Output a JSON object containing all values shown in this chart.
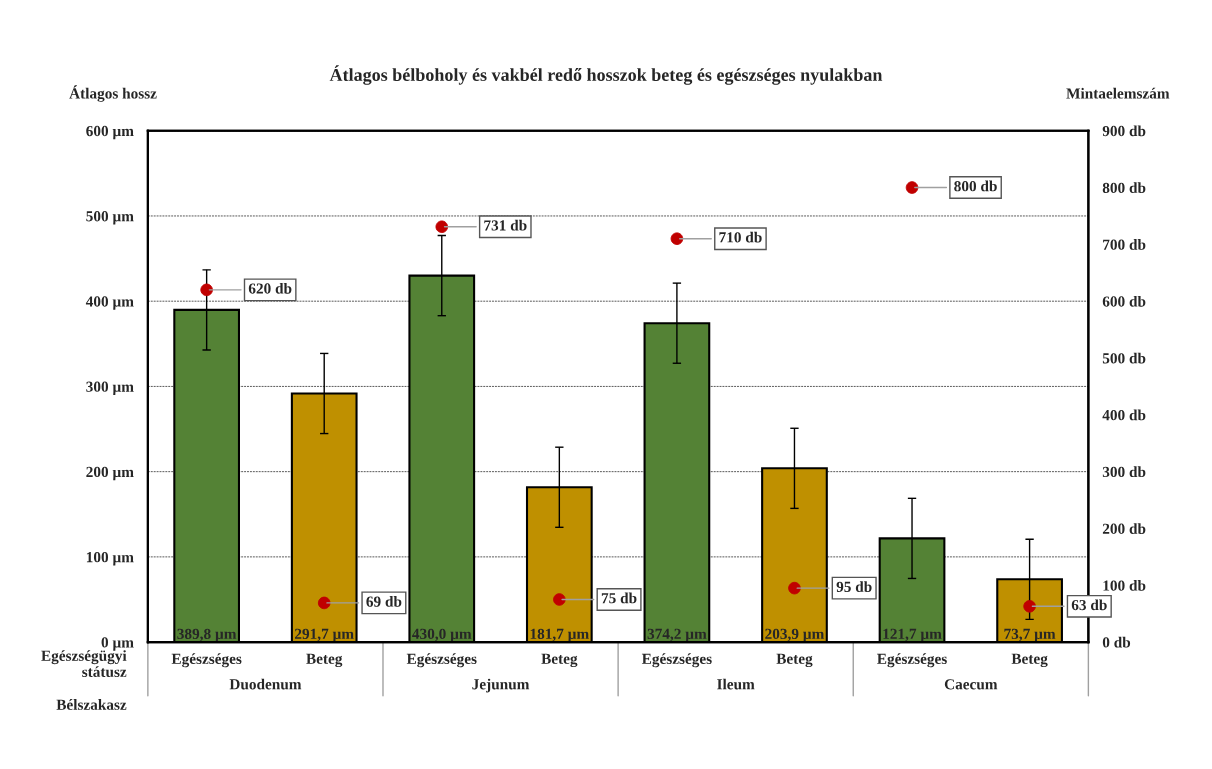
{
  "chart_data": {
    "type": "bar",
    "title": "Átlagos bélboholy és vakbél redő hosszok beteg és egészséges nyulakban",
    "ylabel": "Átlagos hossz",
    "y2label": "Mintaelemszám",
    "categories": [
      "Egészséges",
      "Beteg",
      "Egészséges",
      "Beteg",
      "Egészséges",
      "Beteg",
      "Egészséges",
      "Beteg"
    ],
    "series": [
      {
        "colors": [
          "#548235",
          "#bf9000",
          "#548235",
          "#bf9000",
          "#548235",
          "#bf9000",
          "#548235",
          "#bf9000"
        ],
        "values": [
          389.8,
          291.7,
          430.0,
          181.7,
          374.2,
          203.9,
          121.7,
          73.7
        ],
        "errors": [
          47,
          47,
          47,
          47,
          47,
          47,
          47,
          47
        ],
        "value_labels": [
          "389,8 µm",
          "291,7 µm",
          "430,0 µm",
          "181,7 µm",
          "374,2 µm",
          "203,9 µm",
          "121,7 µm",
          "73,7 µm"
        ]
      },
      {
        "type": "scatter",
        "axis": "y2",
        "color": "#c00000",
        "marker": "circle",
        "values": [
          620,
          69,
          731,
          75,
          710,
          95,
          800,
          63
        ],
        "value_labels": [
          "620 db",
          "69 db",
          "731 db",
          "75 db",
          "710 db",
          "95 db",
          "800 db",
          "63 db"
        ]
      }
    ],
    "ylim": [
      0,
      600
    ],
    "yticks": [
      {
        "value": 0,
        "label": "0 µm"
      },
      {
        "value": 100,
        "label": "100 µm"
      },
      {
        "value": 200,
        "label": "200 µm"
      },
      {
        "value": 300,
        "label": "300 µm"
      },
      {
        "value": 400,
        "label": "400 µm"
      },
      {
        "value": 500,
        "label": "500 µm"
      },
      {
        "value": 600,
        "label": "600 µm"
      }
    ],
    "y2lim": [
      0,
      900
    ],
    "y2ticks": [
      {
        "value": 0,
        "label": "0 db"
      },
      {
        "value": 100,
        "label": "100 db"
      },
      {
        "value": 200,
        "label": "200 db"
      },
      {
        "value": 300,
        "label": "300 db"
      },
      {
        "value": 400,
        "label": "400 db"
      },
      {
        "value": 500,
        "label": "500 db"
      },
      {
        "value": 600,
        "label": "600 db"
      },
      {
        "value": 700,
        "label": "700 db"
      },
      {
        "value": 800,
        "label": "800 db"
      },
      {
        "value": 900,
        "label": "900 db"
      }
    ],
    "grid": "y",
    "annotations": [
      "Duodenum",
      "Jejunum",
      "Ileum",
      "Caecum",
      "Egészségügyi\nstátusz",
      "Bélszakasz"
    ]
  }
}
